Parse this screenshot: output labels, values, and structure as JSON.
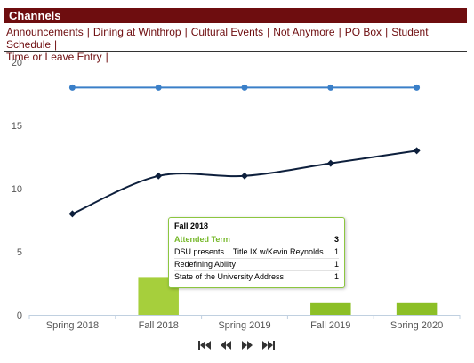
{
  "header": {
    "title": "Channels"
  },
  "channels": [
    "Announcements",
    "Dining at Winthrop",
    "Cultural Events",
    "Not Anymore",
    "PO Box",
    "Student Schedule",
    "Time or Leave Entry"
  ],
  "colors": {
    "header_bg": "#6e0d0f",
    "link": "#6e0d0f",
    "line_blue": "#3a7fc8",
    "line_navy": "#0d1f3c",
    "bar_green": "#a6cf3c",
    "bar_green_dark": "#8cbf26",
    "tooltip_border": "#8cc63f"
  },
  "chart_data": {
    "type": "bar+line",
    "categories": [
      "Spring 2018",
      "Fall 2018",
      "Spring 2019",
      "Fall 2019",
      "Spring 2020"
    ],
    "ylim": [
      0,
      20
    ],
    "yticks": [
      0,
      5,
      10,
      15,
      20
    ],
    "series": [
      {
        "type": "line",
        "values": [
          18,
          18,
          18,
          18,
          18
        ]
      },
      {
        "type": "line",
        "values": [
          8,
          11,
          11,
          12,
          13
        ]
      },
      {
        "type": "bar",
        "values": [
          0,
          3,
          0,
          1,
          1
        ]
      }
    ],
    "grid": false,
    "title": "",
    "xlabel": "",
    "ylabel": ""
  },
  "tooltip": {
    "title": "Fall 2018",
    "header_label": "Attended Term",
    "header_value": "3",
    "rows": [
      {
        "label": "DSU presents... Title IX w/Kevin Reynolds",
        "value": "1"
      },
      {
        "label": "Redefining Ability",
        "value": "1"
      },
      {
        "label": "State of the University Address",
        "value": "1"
      }
    ]
  },
  "navigation": {
    "buttons": [
      "first-icon",
      "previous-icon",
      "next-icon",
      "last-icon"
    ]
  }
}
